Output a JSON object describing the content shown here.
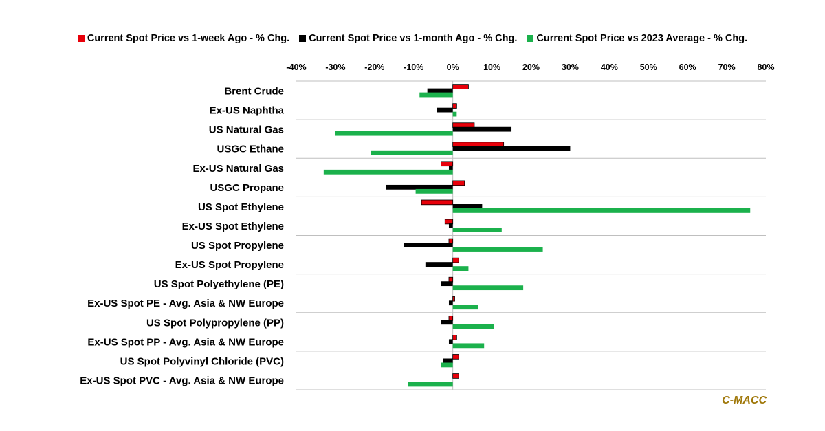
{
  "chart_data": {
    "type": "bar",
    "orientation": "horizontal",
    "categories": [
      "Brent Crude",
      "Ex-US Naphtha",
      "US Natural Gas",
      "USGC Ethane",
      "Ex-US Natural Gas",
      "USGC Propane",
      "US Spot Ethylene",
      "Ex-US Spot Ethylene",
      "US Spot Propylene",
      "Ex-US Spot Propylene",
      "US Spot Polyethylene (PE)",
      "Ex-US Spot PE - Avg. Asia & NW Europe",
      "US Spot Polypropylene (PP)",
      "Ex-US Spot PP - Avg. Asia & NW Europe",
      "US Spot Polyvinyl Chloride (PVC)",
      "Ex-US Spot PVC - Avg. Asia & NW Europe"
    ],
    "series": [
      {
        "name": "Current Spot Price vs 1-week Ago - % Chg.",
        "color": "#E8000A",
        "values": [
          4,
          1,
          5.5,
          13,
          -3,
          3,
          -8,
          -2,
          -1,
          1.5,
          -1,
          0.5,
          -1,
          1,
          1.5,
          1.5
        ]
      },
      {
        "name": "Current Spot Price vs 1-month Ago - % Chg.",
        "color": "#000000",
        "values": [
          -6.5,
          -4,
          15,
          30,
          -1,
          -17,
          7.5,
          -1,
          -12.5,
          -7,
          -3,
          -1,
          -3,
          -1,
          -2.5,
          0
        ]
      },
      {
        "name": "Current Spot Price vs 2023 Average - % Chg.",
        "color": "#1BB14C",
        "values": [
          -8.5,
          1,
          -30,
          -21,
          -33,
          -9.5,
          76,
          12.5,
          23,
          4,
          18,
          6.5,
          10.5,
          8,
          -3,
          -11.5
        ]
      }
    ],
    "xlim": [
      -40,
      80
    ],
    "xticks": [
      -40,
      -30,
      -20,
      -10,
      0,
      10,
      20,
      30,
      40,
      50,
      60,
      70,
      80
    ],
    "tick_labels": [
      "-40%",
      "-30%",
      "-20%",
      "-10%",
      "0%",
      "10%",
      "20%",
      "30%",
      "40%",
      "50%",
      "60%",
      "70%",
      "80%"
    ],
    "legend_position": "top",
    "grid": "horizontal group separators"
  },
  "legend": {
    "items": [
      {
        "label": "Current Spot Price vs 1-week Ago - % Chg.",
        "color": "#E8000A"
      },
      {
        "label": "Current Spot Price vs 1-month Ago - % Chg.",
        "color": "#000000"
      },
      {
        "label": "Current Spot Price vs 2023 Average - % Chg.",
        "color": "#1BB14C"
      }
    ]
  },
  "brand": "C-MACC"
}
